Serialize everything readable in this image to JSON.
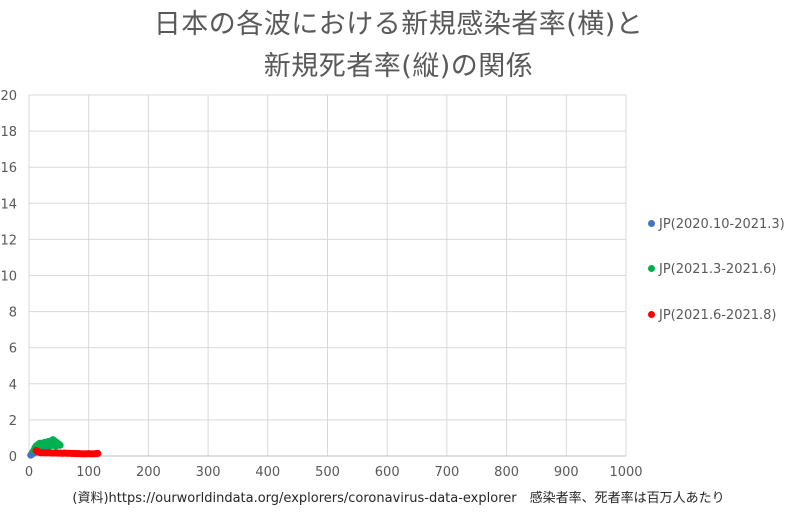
{
  "page": {
    "title_line1": "日本の各波における新規感染者率(横)と",
    "title_line2": "新規死者率(縦)の関係",
    "source": "(資料)https://ourworldindata.org/explorers/coronavirus-data-explorer　感染者率、死者率は百万人あたり"
  },
  "chart_data": {
    "type": "scatter",
    "title": "日本の各波における新規感染者率(横)と新規死者率(縦)の関係",
    "xlabel": "",
    "ylabel": "",
    "xlim": [
      0,
      1000
    ],
    "ylim": [
      0,
      20
    ],
    "x_ticks": [
      "0",
      "100",
      "200",
      "300",
      "400",
      "500",
      "600",
      "700",
      "800",
      "900",
      "1000"
    ],
    "y_ticks": [
      "0",
      "2",
      "4",
      "6",
      "8",
      "10",
      "12",
      "14",
      "16",
      "18",
      "20"
    ],
    "grid": true,
    "legend_position": "right",
    "series": [
      {
        "name": "JP(2020.10-2021.3)",
        "color": "#4472c4",
        "points": [
          [
            3,
            0.05
          ],
          [
            5,
            0.1
          ],
          [
            6,
            0.2
          ],
          [
            8,
            0.25
          ],
          [
            10,
            0.3
          ],
          [
            12,
            0.35
          ],
          [
            14,
            0.4
          ],
          [
            16,
            0.45
          ],
          [
            18,
            0.5
          ],
          [
            20,
            0.55
          ],
          [
            22,
            0.6
          ],
          [
            24,
            0.55
          ],
          [
            26,
            0.5
          ],
          [
            28,
            0.45
          ],
          [
            30,
            0.4
          ],
          [
            25,
            0.35
          ],
          [
            20,
            0.3
          ],
          [
            15,
            0.25
          ],
          [
            10,
            0.2
          ],
          [
            7,
            0.15
          ]
        ]
      },
      {
        "name": "JP(2021.3-2021.6)",
        "color": "#00b050",
        "points": [
          [
            8,
            0.3
          ],
          [
            10,
            0.45
          ],
          [
            12,
            0.55
          ],
          [
            14,
            0.6
          ],
          [
            16,
            0.65
          ],
          [
            18,
            0.7
          ],
          [
            20,
            0.7
          ],
          [
            22,
            0.65
          ],
          [
            24,
            0.7
          ],
          [
            26,
            0.75
          ],
          [
            28,
            0.7
          ],
          [
            30,
            0.75
          ],
          [
            32,
            0.8
          ],
          [
            34,
            0.75
          ],
          [
            36,
            0.8
          ],
          [
            38,
            0.85
          ],
          [
            40,
            0.9
          ],
          [
            42,
            0.85
          ],
          [
            44,
            0.8
          ],
          [
            46,
            0.75
          ],
          [
            48,
            0.7
          ],
          [
            50,
            0.65
          ],
          [
            52,
            0.6
          ],
          [
            45,
            0.55
          ],
          [
            40,
            0.6
          ],
          [
            35,
            0.55
          ],
          [
            30,
            0.6
          ],
          [
            25,
            0.6
          ],
          [
            20,
            0.55
          ],
          [
            15,
            0.5
          ]
        ]
      },
      {
        "name": "JP(2021.6-2021.8)",
        "color": "#ff0000",
        "points": [
          [
            12,
            0.3
          ],
          [
            14,
            0.25
          ],
          [
            16,
            0.22
          ],
          [
            18,
            0.2
          ],
          [
            20,
            0.18
          ],
          [
            24,
            0.18
          ],
          [
            28,
            0.17
          ],
          [
            32,
            0.18
          ],
          [
            36,
            0.17
          ],
          [
            40,
            0.16
          ],
          [
            44,
            0.17
          ],
          [
            48,
            0.16
          ],
          [
            52,
            0.16
          ],
          [
            56,
            0.15
          ],
          [
            60,
            0.16
          ],
          [
            64,
            0.15
          ],
          [
            68,
            0.15
          ],
          [
            72,
            0.14
          ],
          [
            76,
            0.14
          ],
          [
            80,
            0.13
          ],
          [
            84,
            0.13
          ],
          [
            88,
            0.12
          ],
          [
            92,
            0.12
          ],
          [
            96,
            0.12
          ],
          [
            100,
            0.13
          ],
          [
            104,
            0.12
          ],
          [
            108,
            0.12
          ],
          [
            112,
            0.13
          ],
          [
            115,
            0.14
          ]
        ]
      }
    ]
  }
}
